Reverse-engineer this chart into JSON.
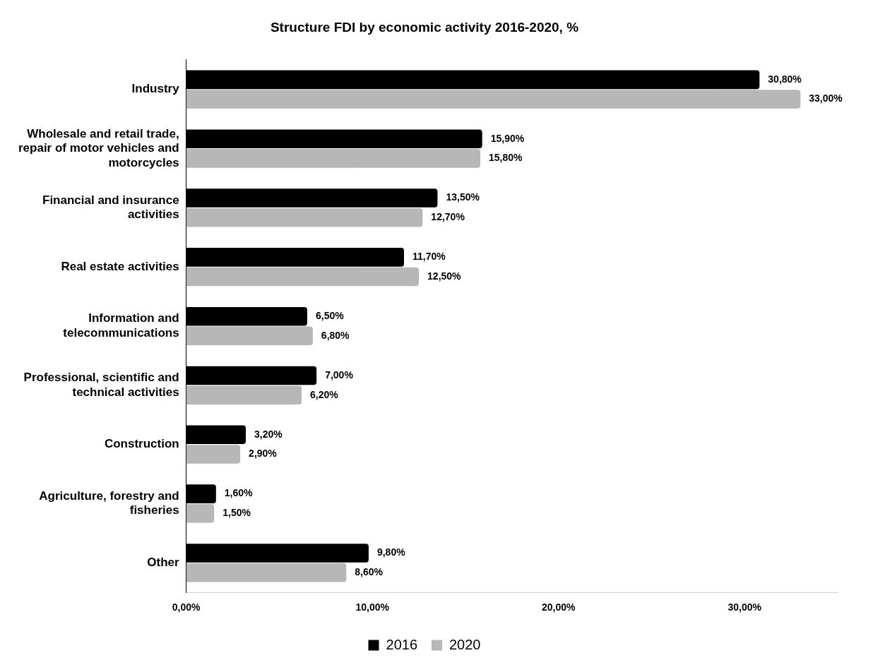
{
  "chart_data": {
    "type": "bar",
    "orientation": "horizontal",
    "title": "Structure FDI by economic activity 2016-2020, %",
    "categories": [
      "Industry",
      "Wholesale and retail trade, repair of motor vehicles and motorcycles",
      "Financial and insurance activities",
      "Real estate activities",
      "Information and telecommunications",
      "Professional, scientific and technical activities",
      "Construction",
      "Agriculture, forestry and fisheries",
      "Other"
    ],
    "series": [
      {
        "name": "2016",
        "color": "#000000",
        "values": [
          30.8,
          15.9,
          13.5,
          11.7,
          6.5,
          7.0,
          3.2,
          1.6,
          9.8
        ],
        "value_labels": [
          "30,80%",
          "15,90%",
          "13,50%",
          "11,70%",
          "6,50%",
          "7,00%",
          "3,20%",
          "1,60%",
          "9,80%"
        ]
      },
      {
        "name": "2020",
        "color": "#b7b7b7",
        "values": [
          33.0,
          15.8,
          12.7,
          12.5,
          6.8,
          6.2,
          2.9,
          1.5,
          8.6
        ],
        "value_labels": [
          "33,00%",
          "15,80%",
          "12,70%",
          "12,50%",
          "6,80%",
          "6,20%",
          "2,90%",
          "1,50%",
          "8,60%"
        ]
      }
    ],
    "xlim": [
      0,
      35
    ],
    "xticks": [
      {
        "value": 0,
        "label": "0,00%"
      },
      {
        "value": 10,
        "label": "10,00%"
      },
      {
        "value": 20,
        "label": "20,00%"
      },
      {
        "value": 30,
        "label": "30,00%"
      }
    ],
    "grid": false,
    "legend": "bottom"
  }
}
